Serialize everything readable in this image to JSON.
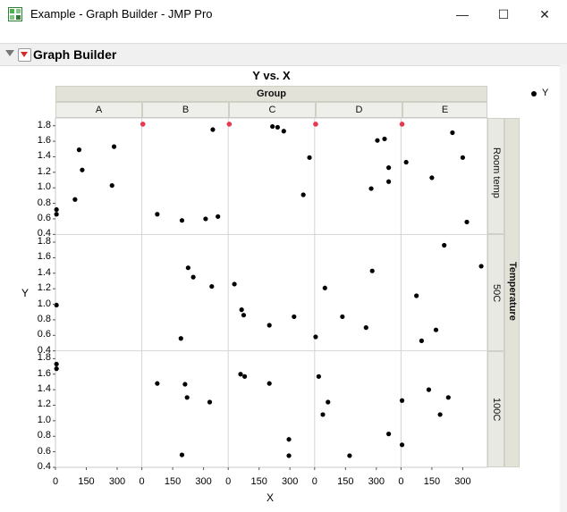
{
  "window": {
    "title": "Example - Graph Builder - JMP Pro",
    "minimize_glyph": "—",
    "maximize_glyph": "☐",
    "close_glyph": "✕"
  },
  "toolbar": {
    "overflow_glyph": "• • •"
  },
  "panel": {
    "title": "Graph Builder"
  },
  "chart_data": {
    "type": "scatter",
    "title": "Y vs. X",
    "xlabel": "X",
    "ylabel": "Y",
    "x_group_title": "Group",
    "y_group_title": "Temperature",
    "column_groups": [
      "A",
      "B",
      "C",
      "D",
      "E"
    ],
    "row_groups": [
      "Room temp",
      "50C",
      "100C"
    ],
    "xlim": [
      0,
      420
    ],
    "ylim": [
      0.4,
      1.9
    ],
    "xticks": [
      0,
      150,
      300
    ],
    "yticks": [
      0.4,
      0.6,
      0.8,
      1.0,
      1.2,
      1.4,
      1.6,
      1.8
    ],
    "legend": {
      "position": "top-right",
      "entries": [
        "Y"
      ]
    },
    "marker_color": "#000000",
    "excluded_marker_color": "#e8384f",
    "panels": [
      {
        "column": "A",
        "row": "Room temp",
        "points": [
          [
            5,
            0.72
          ],
          [
            5,
            0.66
          ],
          [
            95,
            0.85
          ],
          [
            115,
            1.49
          ],
          [
            130,
            1.23
          ],
          [
            275,
            1.03
          ],
          [
            285,
            1.53
          ]
        ]
      },
      {
        "column": "B",
        "row": "Room temp",
        "points": [
          [
            75,
            0.66
          ],
          [
            195,
            0.58
          ],
          [
            310,
            0.6
          ],
          [
            345,
            1.75
          ],
          [
            370,
            0.63
          ]
        ],
        "excluded_points": [
          [
            5,
            1.82
          ]
        ]
      },
      {
        "column": "C",
        "row": "Room temp",
        "points": [
          [
            215,
            1.79
          ],
          [
            240,
            1.78
          ],
          [
            270,
            1.73
          ],
          [
            365,
            0.91
          ],
          [
            395,
            1.39
          ]
        ],
        "excluded_points": [
          [
            5,
            1.82
          ]
        ]
      },
      {
        "column": "D",
        "row": "Room temp",
        "points": [
          [
            275,
            0.99
          ],
          [
            305,
            1.61
          ],
          [
            340,
            1.63
          ],
          [
            360,
            1.26
          ],
          [
            360,
            1.08
          ]
        ],
        "excluded_points": [
          [
            5,
            1.82
          ]
        ]
      },
      {
        "column": "E",
        "row": "Room temp",
        "points": [
          [
            25,
            1.33
          ],
          [
            150,
            1.13
          ],
          [
            250,
            1.71
          ],
          [
            300,
            1.39
          ],
          [
            320,
            0.56
          ]
        ],
        "excluded_points": [
          [
            5,
            1.82
          ]
        ]
      },
      {
        "column": "A",
        "row": "50C",
        "points": [
          [
            5,
            0.99
          ]
        ]
      },
      {
        "column": "B",
        "row": "50C",
        "points": [
          [
            190,
            0.56
          ],
          [
            225,
            1.47
          ],
          [
            250,
            1.35
          ],
          [
            340,
            1.23
          ]
        ]
      },
      {
        "column": "C",
        "row": "50C",
        "points": [
          [
            30,
            1.26
          ],
          [
            65,
            0.93
          ],
          [
            75,
            0.86
          ],
          [
            200,
            0.73
          ],
          [
            320,
            0.84
          ]
        ]
      },
      {
        "column": "D",
        "row": "50C",
        "points": [
          [
            5,
            0.58
          ],
          [
            50,
            1.21
          ],
          [
            135,
            0.84
          ],
          [
            250,
            0.7
          ],
          [
            280,
            1.43
          ]
        ]
      },
      {
        "column": "E",
        "row": "50C",
        "points": [
          [
            75,
            1.11
          ],
          [
            100,
            0.53
          ],
          [
            170,
            0.67
          ],
          [
            210,
            1.76
          ],
          [
            390,
            1.49
          ]
        ]
      },
      {
        "column": "A",
        "row": "100C",
        "points": [
          [
            5,
            1.73
          ],
          [
            5,
            1.67
          ]
        ]
      },
      {
        "column": "B",
        "row": "100C",
        "points": [
          [
            75,
            1.48
          ],
          [
            195,
            0.56
          ],
          [
            210,
            1.47
          ],
          [
            220,
            1.3
          ],
          [
            330,
            1.24
          ]
        ]
      },
      {
        "column": "C",
        "row": "100C",
        "points": [
          [
            60,
            1.6
          ],
          [
            80,
            1.57
          ],
          [
            200,
            1.48
          ],
          [
            295,
            0.76
          ],
          [
            295,
            0.55
          ]
        ]
      },
      {
        "column": "D",
        "row": "100C",
        "points": [
          [
            20,
            1.57
          ],
          [
            40,
            1.08
          ],
          [
            65,
            1.24
          ],
          [
            170,
            0.55
          ],
          [
            360,
            0.83
          ]
        ]
      },
      {
        "column": "E",
        "row": "100C",
        "points": [
          [
            5,
            1.26
          ],
          [
            5,
            0.69
          ],
          [
            135,
            1.4
          ],
          [
            190,
            1.08
          ],
          [
            230,
            1.3
          ]
        ]
      }
    ]
  }
}
